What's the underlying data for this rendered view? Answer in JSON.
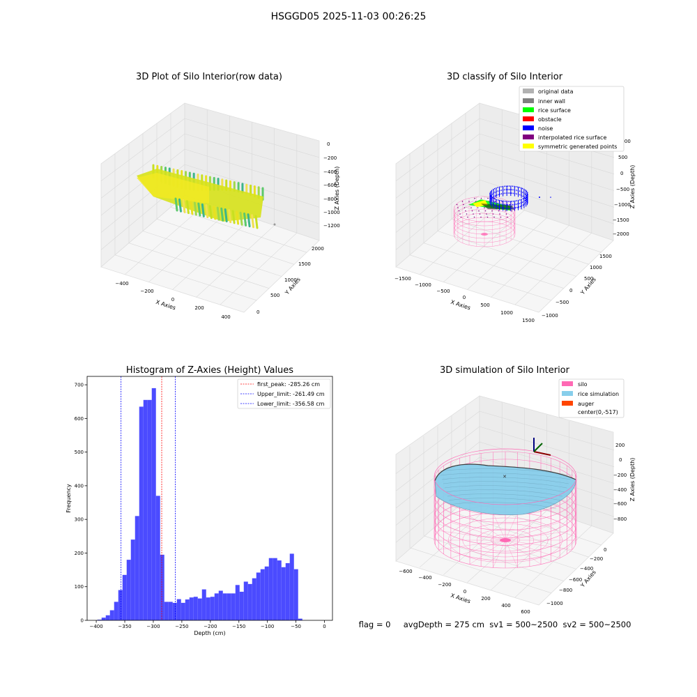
{
  "suptitle": "HSGGD05 2025-11-03 00:26:25",
  "footer": "flag = 0     avgDepth = 275 cm  sv1 = 500~2500  sv2 = 500~2500",
  "colors": {
    "original": "#b2b2b2",
    "inner_wall": "#808080",
    "rice_surface": "#00ff00",
    "obstacle": "#ff0000",
    "noise": "#0000ff",
    "interp": "#800080",
    "symmetric": "#ffff00",
    "silo": "#ff69b4",
    "rice_sim": "#87ceeb",
    "auger": "#ff4500",
    "hist_bar": "#4b4bff"
  },
  "chart_data": [
    {
      "type": "scatter3d",
      "title": "3D Plot of Silo Interior(row data)",
      "xlabel": "X Axies",
      "ylabel": "Y Axies",
      "zlabel": "Z Axies (Depth)",
      "x_ticks": [
        "−400",
        "−200",
        "0",
        "200",
        "400"
      ],
      "y_ticks": [
        "0",
        "500",
        "1000",
        "1500",
        "2000"
      ],
      "z_ticks": [
        "0",
        "−200",
        "−400",
        "−600",
        "−800",
        "−1000",
        "−1200"
      ],
      "grid": true
    },
    {
      "type": "scatter3d",
      "title": "3D classify of Silo Interior",
      "xlabel": "X Axies",
      "ylabel": "Y Axies",
      "zlabel": "Z Axies (Depth)",
      "x_ticks": [
        "−1500",
        "−1000",
        "−500",
        "0",
        "500",
        "1000",
        "1500"
      ],
      "y_ticks": [
        "−1000",
        "−500",
        "0",
        "500",
        "1000",
        "1500"
      ],
      "z_ticks": [
        "1000",
        "500",
        "0",
        "−500",
        "−1000",
        "−1500",
        "−2000"
      ],
      "legend": [
        "original data",
        "inner wall",
        "rice surface",
        "obstacle",
        "noise",
        "interpolated rice surface",
        "symmetric generated points"
      ],
      "legend_loc": "top-right",
      "grid": true
    },
    {
      "type": "bar",
      "title": "Histogram of Z-Axies (Height) Values",
      "xlabel": "Depth (cm)",
      "ylabel": "Frequency",
      "xlim": [
        -416,
        14
      ],
      "ylim": [
        0,
        725
      ],
      "x_ticks": [
        -400,
        -350,
        -300,
        -250,
        -200,
        -150,
        -100,
        -50,
        0
      ],
      "x_tick_labels": [
        "−400",
        "−350",
        "−300",
        "−250",
        "−200",
        "−150",
        "−100",
        "−50",
        "0"
      ],
      "y_ticks": [
        0,
        100,
        200,
        300,
        400,
        500,
        600,
        700
      ],
      "y_tick_labels": [
        "0",
        "100",
        "200",
        "300",
        "400",
        "500",
        "600",
        "700"
      ],
      "bin_start": -398,
      "bin_width": 7.33,
      "values": [
        2,
        8,
        15,
        30,
        55,
        90,
        135,
        180,
        240,
        310,
        635,
        655,
        655,
        690,
        370,
        195,
        55,
        55,
        52,
        63,
        52,
        62,
        68,
        70,
        65,
        92,
        68,
        70,
        80,
        88,
        80,
        80,
        80,
        105,
        85,
        115,
        108,
        125,
        142,
        152,
        160,
        185,
        185,
        178,
        158,
        170,
        198,
        152,
        5
      ],
      "lines": [
        {
          "label": "first_peak: -285.26 cm",
          "x": -285.26,
          "color": "#ff0000"
        },
        {
          "label": "Upper_limit: -261.49 cm",
          "x": -261.49,
          "color": "#0000ff"
        },
        {
          "label": "Lower_limit: -356.58 cm",
          "x": -356.58,
          "color": "#0000ff"
        }
      ],
      "legend_loc": "top-right"
    },
    {
      "type": "surface3d",
      "title": "3D simulation of Silo Interior",
      "xlabel": "X Axies",
      "ylabel": "Y Axies",
      "zlabel": "Z Axies (Depth)",
      "x_ticks": [
        "−600",
        "−400",
        "−200",
        "0",
        "200",
        "400",
        "600"
      ],
      "y_ticks": [
        "0",
        "−200",
        "−400",
        "−600",
        "−800",
        "−1000"
      ],
      "z_ticks": [
        "200",
        "0",
        "−200",
        "−400",
        "−600",
        "−800"
      ],
      "legend": [
        "silo",
        "rice simulation",
        "auger",
        "center(0,-517)"
      ],
      "legend_loc": "top-right",
      "grid": true
    }
  ]
}
